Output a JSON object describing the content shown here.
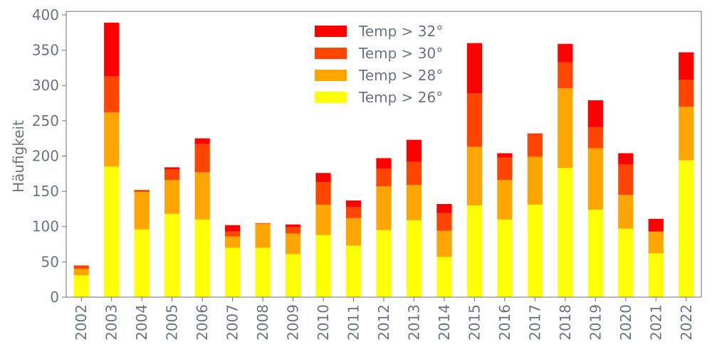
{
  "chart_data": {
    "type": "bar",
    "stacked": true,
    "title": "",
    "xlabel": "",
    "ylabel": "Häufigkeit",
    "ylim": [
      0,
      405
    ],
    "yticks": [
      0,
      50,
      100,
      150,
      200,
      250,
      300,
      350,
      400
    ],
    "grid": false,
    "legend_position": "top-center",
    "categories": [
      "2002",
      "2003",
      "2004",
      "2005",
      "2006",
      "2007",
      "2008",
      "2009",
      "2010",
      "2011",
      "2012",
      "2013",
      "2014",
      "2015",
      "2016",
      "2017",
      "2018",
      "2019",
      "2020",
      "2021",
      "2022"
    ],
    "series": [
      {
        "name": "Temp > 26°",
        "color": "#ffff00",
        "values": [
          31,
          185,
          96,
          118,
          110,
          70,
          70,
          61,
          88,
          73,
          95,
          109,
          57,
          130,
          110,
          131,
          183,
          124,
          97,
          62,
          194
        ]
      },
      {
        "name": "Temp > 28°",
        "color": "#ffa500",
        "values": [
          9,
          77,
          53,
          48,
          67,
          16,
          34,
          29,
          43,
          39,
          62,
          50,
          37,
          83,
          56,
          68,
          113,
          87,
          48,
          31,
          76
        ]
      },
      {
        "name": "Temp > 30°",
        "color": "#ff4500",
        "values": [
          5,
          51,
          3,
          15,
          40,
          7,
          1,
          9,
          32,
          16,
          25,
          33,
          25,
          76,
          32,
          32,
          37,
          30,
          43,
          0,
          38
        ]
      },
      {
        "name": "Temp > 32°",
        "color": "#ff0000",
        "values": [
          0,
          76,
          0,
          3,
          8,
          9,
          0,
          4,
          13,
          9,
          15,
          31,
          13,
          71,
          6,
          1,
          26,
          38,
          16,
          18,
          39
        ]
      }
    ]
  }
}
